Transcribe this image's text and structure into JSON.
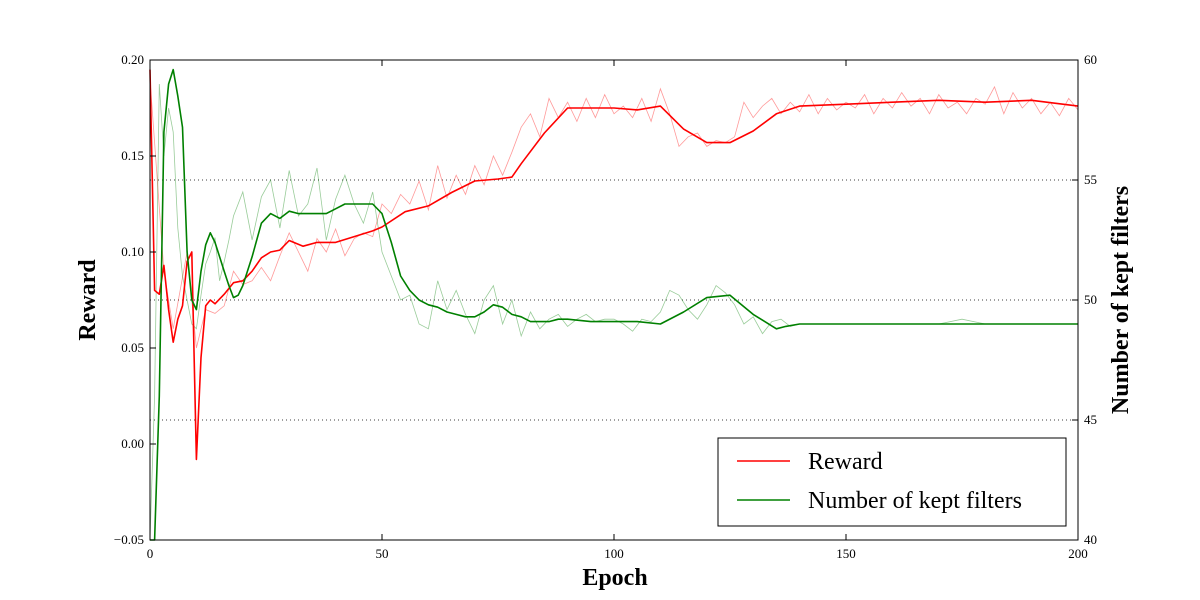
{
  "chart_data": {
    "type": "line",
    "xlabel": "Epoch",
    "ylabel_left": "Reward",
    "ylabel_right": "Number of kept filters",
    "xlim": [
      0,
      200
    ],
    "ylim_left": [
      -0.05,
      0.2
    ],
    "ylim_right": [
      40,
      60
    ],
    "x_ticks": [
      0,
      50,
      100,
      150,
      200
    ],
    "y_ticks_left": [
      -0.05,
      0.0,
      0.05,
      0.1,
      0.15,
      0.2
    ],
    "y_tick_labels_left": [
      "−0.05",
      "0.00",
      "0.05",
      "0.10",
      "0.15",
      "0.20"
    ],
    "y_ticks_right": [
      40,
      45,
      50,
      55,
      60
    ],
    "grid": "horizontal dotted lines at right-axis ticks",
    "legend_position": "lower-right",
    "series": [
      {
        "name": "Reward",
        "axis": "left",
        "color": "#ff0000",
        "smoothed": {
          "x": [
            0,
            1,
            2,
            3,
            4,
            5,
            6,
            7,
            8,
            9,
            10,
            11,
            12,
            13,
            14,
            16,
            18,
            20,
            22,
            24,
            26,
            28,
            30,
            33,
            36,
            40,
            44,
            48,
            50,
            55,
            60,
            65,
            70,
            75,
            78,
            80,
            85,
            90,
            95,
            100,
            105,
            110,
            115,
            120,
            125,
            130,
            135,
            140,
            150,
            160,
            170,
            180,
            190,
            200
          ],
          "y": [
            0.195,
            0.08,
            0.078,
            0.093,
            0.07,
            0.053,
            0.065,
            0.072,
            0.095,
            0.1,
            -0.008,
            0.045,
            0.072,
            0.075,
            0.073,
            0.078,
            0.084,
            0.085,
            0.09,
            0.097,
            0.1,
            0.101,
            0.106,
            0.103,
            0.105,
            0.105,
            0.108,
            0.111,
            0.113,
            0.121,
            0.124,
            0.131,
            0.137,
            0.138,
            0.139,
            0.146,
            0.162,
            0.175,
            0.175,
            0.175,
            0.174,
            0.176,
            0.164,
            0.157,
            0.157,
            0.163,
            0.172,
            0.176,
            0.177,
            0.178,
            0.179,
            0.178,
            0.179,
            0.176
          ]
        },
        "raw": {
          "x": [
            0,
            3,
            5,
            8,
            10,
            12,
            14,
            16,
            18,
            20,
            22,
            24,
            26,
            28,
            30,
            32,
            34,
            36,
            38,
            40,
            42,
            44,
            46,
            48,
            50,
            52,
            54,
            56,
            58,
            60,
            62,
            64,
            66,
            68,
            70,
            72,
            74,
            76,
            78,
            80,
            82,
            84,
            86,
            88,
            90,
            92,
            94,
            96,
            98,
            100,
            102,
            104,
            106,
            108,
            110,
            112,
            114,
            116,
            118,
            120,
            122,
            124,
            126,
            128,
            130,
            132,
            134,
            136,
            138,
            140,
            142,
            144,
            146,
            148,
            150,
            152,
            154,
            156,
            158,
            160,
            162,
            164,
            166,
            168,
            170,
            172,
            174,
            176,
            178,
            180,
            182,
            184,
            186,
            188,
            190,
            192,
            194,
            196,
            198,
            200
          ],
          "y": [
            0.19,
            0.09,
            0.06,
            0.1,
            0.05,
            0.07,
            0.068,
            0.072,
            0.09,
            0.083,
            0.085,
            0.092,
            0.085,
            0.098,
            0.11,
            0.1,
            0.09,
            0.107,
            0.1,
            0.112,
            0.098,
            0.107,
            0.11,
            0.108,
            0.125,
            0.12,
            0.13,
            0.125,
            0.137,
            0.122,
            0.145,
            0.128,
            0.14,
            0.13,
            0.145,
            0.135,
            0.15,
            0.14,
            0.152,
            0.165,
            0.172,
            0.16,
            0.18,
            0.17,
            0.178,
            0.168,
            0.18,
            0.17,
            0.182,
            0.172,
            0.176,
            0.17,
            0.18,
            0.168,
            0.185,
            0.172,
            0.155,
            0.16,
            0.162,
            0.155,
            0.158,
            0.157,
            0.16,
            0.178,
            0.17,
            0.176,
            0.18,
            0.172,
            0.178,
            0.173,
            0.182,
            0.172,
            0.18,
            0.174,
            0.178,
            0.175,
            0.182,
            0.172,
            0.18,
            0.175,
            0.183,
            0.176,
            0.18,
            0.172,
            0.182,
            0.175,
            0.178,
            0.172,
            0.18,
            0.177,
            0.186,
            0.172,
            0.183,
            0.175,
            0.18,
            0.172,
            0.178,
            0.171,
            0.18,
            0.174
          ]
        }
      },
      {
        "name": "Number of kept filters",
        "axis": "right",
        "color": "#008000",
        "smoothed": {
          "x": [
            0,
            1,
            2,
            3,
            4,
            5,
            6,
            7,
            8,
            9,
            10,
            11,
            12,
            13,
            14,
            15,
            16,
            17,
            18,
            19,
            20,
            22,
            24,
            26,
            28,
            30,
            32,
            34,
            36,
            38,
            40,
            42,
            44,
            46,
            48,
            50,
            52,
            54,
            56,
            58,
            60,
            62,
            64,
            66,
            68,
            70,
            72,
            74,
            76,
            78,
            80,
            82,
            84,
            86,
            88,
            90,
            95,
            100,
            105,
            110,
            115,
            120,
            125,
            130,
            135,
            137,
            140,
            150,
            160,
            170,
            180,
            190,
            200
          ],
          "y": [
            40,
            40,
            46,
            57,
            59,
            59.6,
            58.5,
            57.2,
            52,
            50,
            49.6,
            51.2,
            52.3,
            52.8,
            52.4,
            51.8,
            51.2,
            50.6,
            50.1,
            50.2,
            50.6,
            51.8,
            53.2,
            53.6,
            53.4,
            53.7,
            53.6,
            53.6,
            53.6,
            53.6,
            53.8,
            54,
            54,
            54,
            54,
            53.6,
            52.4,
            51,
            50.4,
            50,
            49.8,
            49.7,
            49.5,
            49.4,
            49.3,
            49.3,
            49.5,
            49.8,
            49.7,
            49.4,
            49.3,
            49.1,
            49.1,
            49.1,
            49.2,
            49.2,
            49.1,
            49.1,
            49.1,
            49,
            49.5,
            50.1,
            50.2,
            49.4,
            48.8,
            48.9,
            49,
            49,
            49,
            49,
            49,
            49,
            49
          ]
        },
        "raw": {
          "x": [
            0,
            1,
            2,
            3,
            4,
            5,
            6,
            7,
            8,
            9,
            10,
            11,
            12,
            13,
            14,
            15,
            16,
            17,
            18,
            20,
            22,
            24,
            26,
            28,
            30,
            32,
            34,
            36,
            38,
            40,
            42,
            44,
            46,
            48,
            50,
            52,
            54,
            56,
            58,
            60,
            62,
            64,
            66,
            68,
            70,
            72,
            74,
            76,
            78,
            80,
            82,
            84,
            86,
            88,
            90,
            92,
            94,
            96,
            98,
            100,
            102,
            104,
            106,
            108,
            110,
            112,
            114,
            116,
            118,
            120,
            122,
            124,
            126,
            128,
            130,
            132,
            134,
            136,
            138,
            140,
            145,
            150,
            160,
            170,
            175,
            180,
            190,
            200
          ],
          "y": [
            40,
            46,
            59,
            56,
            58,
            57,
            53,
            51,
            50,
            49,
            48.8,
            50.2,
            51.5,
            52,
            52.6,
            50.8,
            51.6,
            52.5,
            53.5,
            54.5,
            52.5,
            54.3,
            55,
            53,
            55.4,
            53.5,
            54,
            55.5,
            52.5,
            54.2,
            55.2,
            54,
            53.2,
            54.5,
            52,
            51,
            50,
            50.2,
            49,
            48.8,
            50.8,
            49.6,
            50.4,
            49.4,
            48.6,
            50,
            50.6,
            49,
            50,
            48.5,
            49.5,
            48.8,
            49.2,
            49.4,
            48.9,
            49.2,
            49.4,
            49.1,
            49.2,
            49.2,
            49,
            48.7,
            49.2,
            49.1,
            49.5,
            50.4,
            50.2,
            49.6,
            49.2,
            49.8,
            50.6,
            50.3,
            49.8,
            49,
            49.3,
            48.6,
            49.1,
            49.2,
            48.9,
            49,
            49,
            49,
            49,
            49,
            49.2,
            49,
            49,
            49
          ]
        }
      }
    ]
  }
}
